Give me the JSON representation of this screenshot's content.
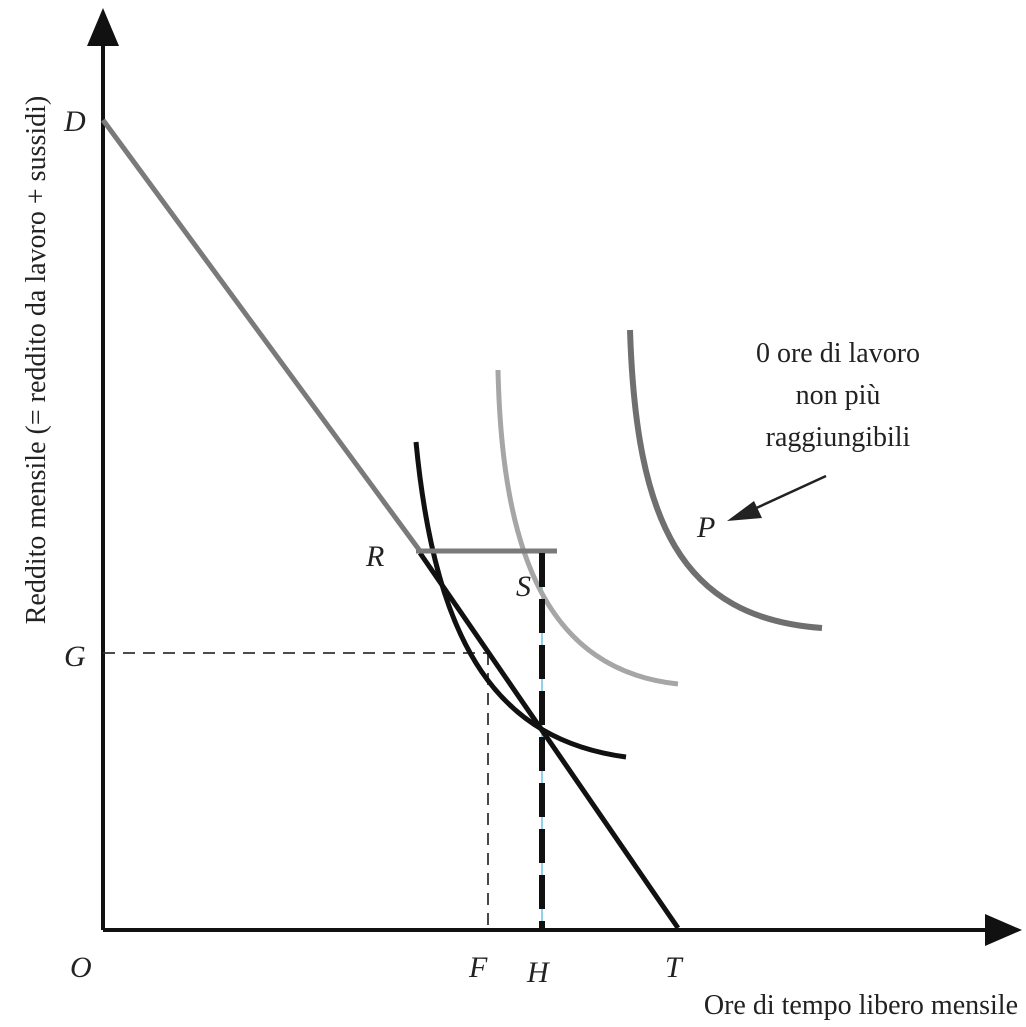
{
  "axes": {
    "y_title": "Reddito mensile (= reddito da lavoro + sussidi)",
    "x_title": "Ore di tempo libero mensile"
  },
  "points": {
    "D": "D",
    "G": "G",
    "O": "O",
    "F": "F",
    "H": "H",
    "T": "T",
    "R": "R",
    "S": "S",
    "P": "P"
  },
  "annotation": {
    "line1": "0 ore di lavoro",
    "line2": "non più",
    "line3": "raggiungibili"
  },
  "colors": {
    "axis": "#111111",
    "budget_old": "#7a7a7a",
    "budget_new": "#111111",
    "curve_low": "#111111",
    "curve_mid": "#a6a6a6",
    "curve_high": "#6f6f6f",
    "guide": "#333333",
    "highlight": "#6cc3e0"
  }
}
